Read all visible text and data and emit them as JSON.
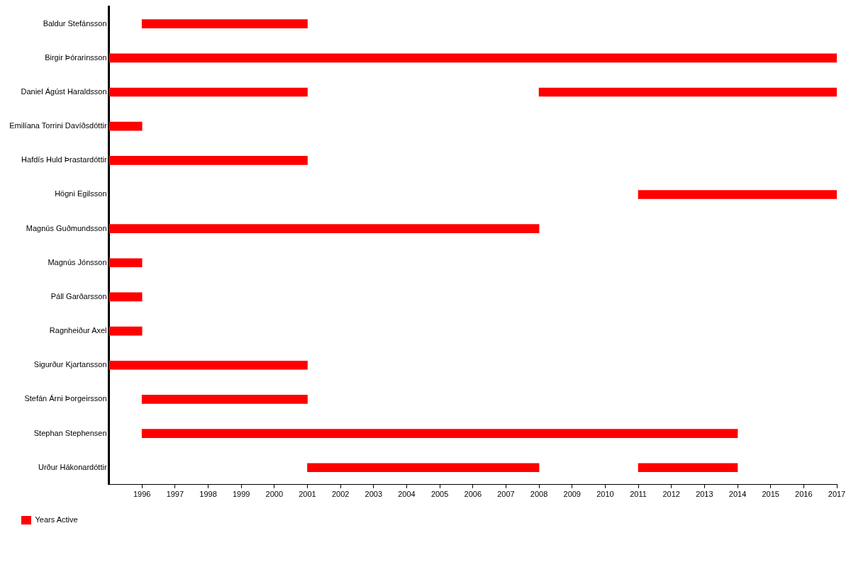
{
  "chart_data": {
    "type": "bar",
    "orientation": "horizontal",
    "categories": [
      "Baldur Stefánsson",
      "Birgir Þórarinsson",
      "Daniel Ágúst Haraldsson",
      "Emilíana Torrini Davíðsdóttir",
      "Hafdís Huld Þrastardóttir",
      "Högni Egilsson",
      "Magnús Guðmundsson",
      "Magnús Jónsson",
      "Páll Garðarsson",
      "Ragnheiður Axel",
      "Sigurður Kjartansson",
      "Stefán Árni Þorgeirsson",
      "Stephan Stephensen",
      "Urður Hákonardóttir"
    ],
    "series": [
      {
        "name": "Years Active",
        "color": "#ff0000",
        "base": [
          1996,
          1995,
          1995,
          1995,
          1995,
          2011,
          1995,
          1995,
          1995,
          1995,
          1995,
          1996,
          1996,
          2001
        ],
        "values": [
          5,
          22,
          6,
          1,
          6,
          6,
          13,
          1,
          1,
          1,
          6,
          5,
          18,
          7
        ]
      },
      {
        "color": "#ff0000",
        "base": [
          null,
          null,
          2008,
          null,
          null,
          null,
          null,
          null,
          null,
          null,
          null,
          null,
          null,
          2011
        ],
        "values": [
          null,
          null,
          9,
          null,
          null,
          null,
          null,
          null,
          null,
          null,
          null,
          null,
          null,
          3
        ]
      }
    ],
    "xlim": [
      1995,
      2017
    ],
    "xticks": [
      1996,
      1997,
      1998,
      1999,
      2000,
      2001,
      2002,
      2003,
      2004,
      2005,
      2006,
      2007,
      2008,
      2009,
      2010,
      2011,
      2012,
      2013,
      2014,
      2015,
      2016,
      2017
    ],
    "grid": false,
    "legend": "bottom left"
  }
}
